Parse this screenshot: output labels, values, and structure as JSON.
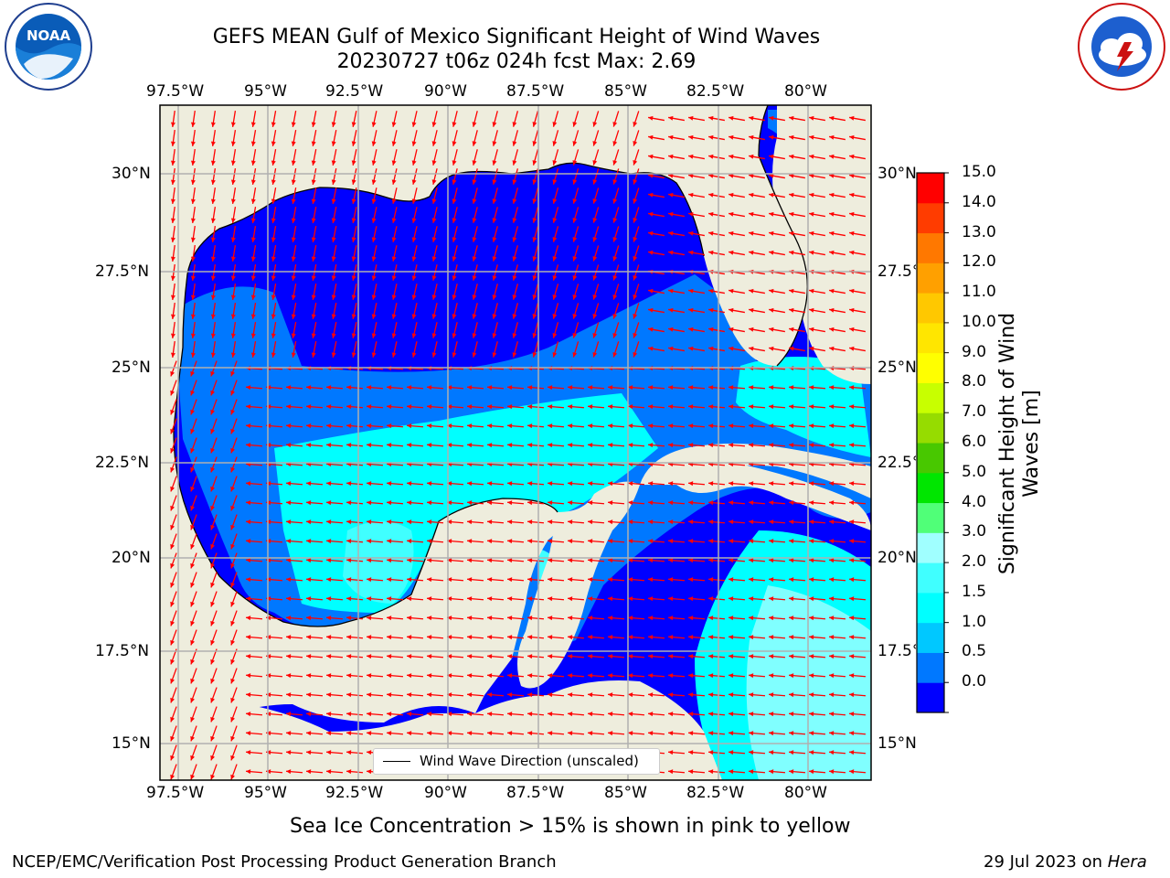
{
  "header": {
    "title_line1": "GEFS MEAN Gulf of Mexico Significant Height of Wind Waves",
    "title_line2": "20230727 t06z 024h fcst   Max: 2.69"
  },
  "logos": {
    "left_text": "NOAA",
    "left_ring_text": "NATIONAL OCEANIC AND ATMOSPHERIC ADMINISTRATION · U.S. DEPARTMENT OF COMMERCE",
    "right_ring_text": "NATIONAL WEATHER SERVICE"
  },
  "map": {
    "lon_labels": [
      "97.5°W",
      "95°W",
      "92.5°W",
      "90°W",
      "87.5°W",
      "85°W",
      "82.5°W",
      "80°W"
    ],
    "lat_labels": [
      "30°N",
      "27.5°N",
      "25°N",
      "22.5°N",
      "20°N",
      "17.5°N",
      "15°N"
    ],
    "lon_range": [
      -98,
      -78.3
    ],
    "lat_range": [
      14,
      31.6
    ],
    "land_color": "#eeeddd",
    "legend_label": "Wind Wave Direction (unscaled)",
    "arrow_color": "#ff0000"
  },
  "colorbar": {
    "title_line1": "Significant Height of Wind",
    "title_line2": "Waves [m]",
    "tick_labels": [
      "15.0",
      "14.0",
      "13.0",
      "12.0",
      "11.0",
      "10.0",
      "9.0",
      "8.0",
      "7.0",
      "6.0",
      "5.0",
      "4.0",
      "3.0",
      "2.0",
      "1.5",
      "1.0",
      "0.5",
      "0.0"
    ],
    "levels": [
      0,
      0.5,
      1.0,
      1.5,
      2.0,
      3.0,
      4.0,
      5.0,
      6.0,
      7.0,
      8.0,
      9.0,
      10.0,
      11.0,
      12.0,
      13.0,
      14.0,
      15.0
    ],
    "colors": [
      "#0000ff",
      "#0078ff",
      "#00c8ff",
      "#00ffff",
      "#40ffff",
      "#a0ffff",
      "#50ff78",
      "#00e600",
      "#48c800",
      "#96dc00",
      "#c8ff00",
      "#ffff00",
      "#ffe600",
      "#ffc800",
      "#ffa000",
      "#ff7800",
      "#ff3c00",
      "#ff0000"
    ]
  },
  "captions": {
    "sea_ice_note": "Sea Ice Concentration > 15% is shown in pink to yellow",
    "producer": "NCEP/EMC/Verification Post Processing Product Generation Branch",
    "date": "29 Jul 2023 on ",
    "machine": "Hera"
  }
}
